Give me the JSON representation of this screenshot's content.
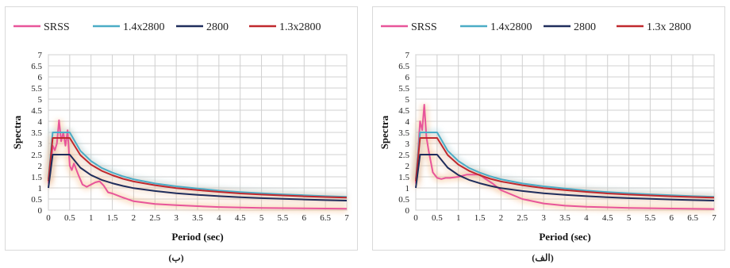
{
  "chart_data": [
    {
      "type": "line",
      "caption": "(ب)",
      "xlabel": "Period (sec)",
      "ylabel": "Spectra",
      "xlim": [
        0,
        7
      ],
      "ylim": [
        0,
        7
      ],
      "xticks": [
        "0",
        "0.5",
        "1",
        "1.5",
        "2",
        "2.5",
        "3",
        "3.5",
        "4",
        "4.5",
        "5",
        "5.5",
        "6",
        "6.5",
        "7"
      ],
      "yticks": [
        "0",
        "0.5",
        "1",
        "1.5",
        "2",
        "2.5",
        "3",
        "3.5",
        "4",
        "4.5",
        "5",
        "5.5",
        "6",
        "6.5",
        "7"
      ],
      "grid": true,
      "legend_position": "top",
      "series": [
        {
          "name": "SRSS",
          "color": "#e8559a",
          "x": [
            0,
            0.05,
            0.1,
            0.15,
            0.2,
            0.25,
            0.3,
            0.35,
            0.4,
            0.45,
            0.5,
            0.55,
            0.6,
            0.7,
            0.8,
            0.9,
            1.0,
            1.1,
            1.2,
            1.3,
            1.4,
            1.5,
            1.7,
            2.0,
            2.5,
            3.0,
            3.5,
            4.0,
            5.0,
            6.0,
            7.0
          ],
          "y": [
            1.2,
            1.8,
            2.9,
            2.7,
            3.0,
            4.05,
            3.1,
            3.5,
            2.9,
            3.6,
            2.0,
            1.8,
            2.1,
            1.6,
            1.15,
            1.05,
            1.15,
            1.25,
            1.3,
            1.1,
            0.8,
            0.75,
            0.6,
            0.4,
            0.28,
            0.22,
            0.18,
            0.14,
            0.1,
            0.08,
            0.06
          ]
        },
        {
          "name": "1.4x2800",
          "color": "#4bacc6",
          "x": [
            0,
            0.1,
            0.5,
            0.75,
            1.0,
            1.25,
            1.5,
            1.75,
            2.0,
            2.5,
            3.0,
            3.5,
            4.0,
            4.5,
            5.0,
            5.5,
            6.0,
            6.5,
            7.0
          ],
          "y": [
            1.4,
            3.5,
            3.5,
            2.67,
            2.21,
            1.9,
            1.69,
            1.52,
            1.39,
            1.2,
            1.07,
            0.97,
            0.88,
            0.81,
            0.76,
            0.71,
            0.67,
            0.63,
            0.6
          ]
        },
        {
          "name": "2800",
          "color": "#1f2d5c",
          "x": [
            0,
            0.1,
            0.5,
            0.75,
            1.0,
            1.25,
            1.5,
            1.75,
            2.0,
            2.5,
            3.0,
            3.5,
            4.0,
            4.5,
            5.0,
            5.5,
            6.0,
            6.5,
            7.0
          ],
          "y": [
            1.0,
            2.5,
            2.5,
            1.91,
            1.58,
            1.36,
            1.21,
            1.09,
            0.99,
            0.86,
            0.76,
            0.69,
            0.63,
            0.58,
            0.54,
            0.51,
            0.48,
            0.45,
            0.43
          ]
        },
        {
          "name": "1.3x2800",
          "color": "#c0282d",
          "x": [
            0,
            0.1,
            0.5,
            0.75,
            1.0,
            1.25,
            1.5,
            1.75,
            2.0,
            2.5,
            3.0,
            3.5,
            4.0,
            4.5,
            5.0,
            5.5,
            6.0,
            6.5,
            7.0
          ],
          "y": [
            1.3,
            3.25,
            3.25,
            2.48,
            2.05,
            1.77,
            1.57,
            1.41,
            1.29,
            1.12,
            0.99,
            0.9,
            0.82,
            0.75,
            0.7,
            0.66,
            0.62,
            0.59,
            0.56
          ]
        }
      ]
    },
    {
      "type": "line",
      "caption": "(الف)",
      "xlabel": "Period (sec)",
      "ylabel": "Spectra",
      "xlim": [
        0,
        7
      ],
      "ylim": [
        0,
        7
      ],
      "xticks": [
        "0",
        "0.5",
        "1",
        "1.5",
        "2",
        "2.5",
        "3",
        "3.5",
        "4",
        "4.5",
        "5",
        "5.5",
        "6",
        "6.5",
        "7"
      ],
      "yticks": [
        "0",
        "0.5",
        "1",
        "1.5",
        "2",
        "2.5",
        "3",
        "3.5",
        "4",
        "4.5",
        "5",
        "5.5",
        "6",
        "6.5",
        "7"
      ],
      "grid": true,
      "legend_position": "top",
      "legend_labels": [
        "SRSS",
        "1.4x2800",
        "2800",
        "1.3x 2800"
      ],
      "series": [
        {
          "name": "SRSS",
          "color": "#e8559a",
          "x": [
            0,
            0.05,
            0.1,
            0.15,
            0.2,
            0.25,
            0.3,
            0.35,
            0.4,
            0.5,
            0.6,
            0.7,
            0.8,
            1.0,
            1.2,
            1.4,
            1.5,
            1.6,
            1.8,
            2.0,
            2.5,
            3.0,
            3.5,
            4.0,
            5.0,
            6.0,
            7.0
          ],
          "y": [
            1.2,
            2.5,
            4.0,
            3.6,
            4.75,
            3.3,
            2.7,
            2.2,
            1.7,
            1.45,
            1.4,
            1.45,
            1.45,
            1.5,
            1.6,
            1.6,
            1.6,
            1.45,
            1.2,
            0.9,
            0.5,
            0.3,
            0.2,
            0.15,
            0.1,
            0.07,
            0.05
          ]
        },
        {
          "name": "1.4x2800",
          "color": "#4bacc6",
          "x": [
            0,
            0.1,
            0.5,
            0.75,
            1.0,
            1.25,
            1.5,
            1.75,
            2.0,
            2.5,
            3.0,
            3.5,
            4.0,
            4.5,
            5.0,
            5.5,
            6.0,
            6.5,
            7.0
          ],
          "y": [
            1.4,
            3.5,
            3.5,
            2.67,
            2.21,
            1.9,
            1.69,
            1.52,
            1.39,
            1.2,
            1.07,
            0.97,
            0.88,
            0.81,
            0.76,
            0.71,
            0.67,
            0.63,
            0.6
          ]
        },
        {
          "name": "2800",
          "color": "#1f2d5c",
          "x": [
            0,
            0.1,
            0.5,
            0.75,
            1.0,
            1.25,
            1.5,
            1.75,
            2.0,
            2.5,
            3.0,
            3.5,
            4.0,
            4.5,
            5.0,
            5.5,
            6.0,
            6.5,
            7.0
          ],
          "y": [
            1.0,
            2.5,
            2.5,
            1.91,
            1.58,
            1.36,
            1.21,
            1.09,
            0.99,
            0.86,
            0.76,
            0.69,
            0.63,
            0.58,
            0.54,
            0.51,
            0.48,
            0.45,
            0.43
          ]
        },
        {
          "name": "1.3x2800",
          "color": "#c0282d",
          "x": [
            0,
            0.1,
            0.5,
            0.75,
            1.0,
            1.25,
            1.5,
            1.75,
            2.0,
            2.5,
            3.0,
            3.5,
            4.0,
            4.5,
            5.0,
            5.5,
            6.0,
            6.5,
            7.0
          ],
          "y": [
            1.3,
            3.25,
            3.25,
            2.48,
            2.05,
            1.77,
            1.57,
            1.41,
            1.29,
            1.12,
            0.99,
            0.9,
            0.82,
            0.75,
            0.7,
            0.66,
            0.62,
            0.59,
            0.56
          ]
        }
      ]
    }
  ]
}
